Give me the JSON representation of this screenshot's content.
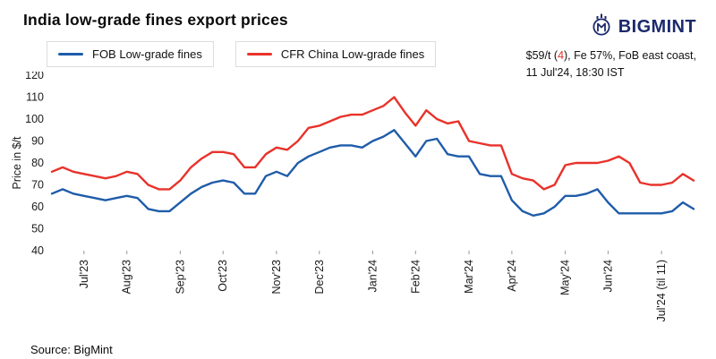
{
  "header": {
    "title": "India low-grade fines export prices",
    "brand": "BIGMINT",
    "note": {
      "price_pre": "$59/t (",
      "price_change": "4",
      "price_post": "), Fe 57%, FoB east coast,",
      "line2": "11 Jul'24, 18:30 IST"
    }
  },
  "legend": [
    {
      "label": "FOB Low-grade fines",
      "color": "#1f5ca9"
    },
    {
      "label": "CFR China Low-grade fines",
      "color": "#e8322b"
    }
  ],
  "chart_data": {
    "type": "line",
    "title": "India low-grade fines export prices",
    "xlabel": "",
    "ylabel": "Price in $/t",
    "ylim": [
      40,
      120
    ],
    "ytick_step": 10,
    "grid": false,
    "legend_position": "top-left",
    "x_unit": "weekly points, Jun'23 to 11 Jul'24",
    "ticks": [
      {
        "label": "Jul'23",
        "index": 3
      },
      {
        "label": "Aug'23",
        "index": 7
      },
      {
        "label": "Sep'23",
        "index": 12
      },
      {
        "label": "Oct'23",
        "index": 16
      },
      {
        "label": "Nov'23",
        "index": 21
      },
      {
        "label": "Dec'23",
        "index": 25
      },
      {
        "label": "Jan'24",
        "index": 30
      },
      {
        "label": "Feb'24",
        "index": 34
      },
      {
        "label": "Mar'24",
        "index": 39
      },
      {
        "label": "Apr'24",
        "index": 43
      },
      {
        "label": "May'24",
        "index": 48
      },
      {
        "label": "Jun'24",
        "index": 52
      },
      {
        "label": "Jul'24 (til 11)",
        "index": 57
      }
    ],
    "series": [
      {
        "name": "FOB Low-grade fines",
        "color": "#1f5ca9",
        "values": [
          66,
          68,
          66,
          65,
          64,
          63,
          64,
          65,
          64,
          59,
          58,
          58,
          62,
          66,
          69,
          71,
          72,
          71,
          66,
          66,
          74,
          76,
          74,
          80,
          83,
          85,
          87,
          88,
          88,
          87,
          90,
          92,
          95,
          89,
          83,
          90,
          91,
          84,
          83,
          83,
          75,
          74,
          74,
          63,
          58,
          56,
          57,
          60,
          65,
          65,
          66,
          68,
          62,
          57,
          57,
          57,
          57,
          57,
          58,
          62,
          59
        ]
      },
      {
        "name": "CFR China Low-grade fines",
        "color": "#e8322b",
        "values": [
          76,
          78,
          76,
          75,
          74,
          73,
          74,
          76,
          75,
          70,
          68,
          68,
          72,
          78,
          82,
          85,
          85,
          84,
          78,
          78,
          84,
          87,
          86,
          90,
          96,
          97,
          99,
          101,
          102,
          102,
          104,
          106,
          110,
          103,
          97,
          104,
          100,
          98,
          99,
          90,
          89,
          88,
          88,
          75,
          73,
          72,
          68,
          70,
          79,
          80,
          80,
          80,
          81,
          83,
          80,
          71,
          70,
          70,
          71,
          75,
          72
        ]
      }
    ]
  },
  "footer": {
    "source": "Source: BigMint"
  }
}
